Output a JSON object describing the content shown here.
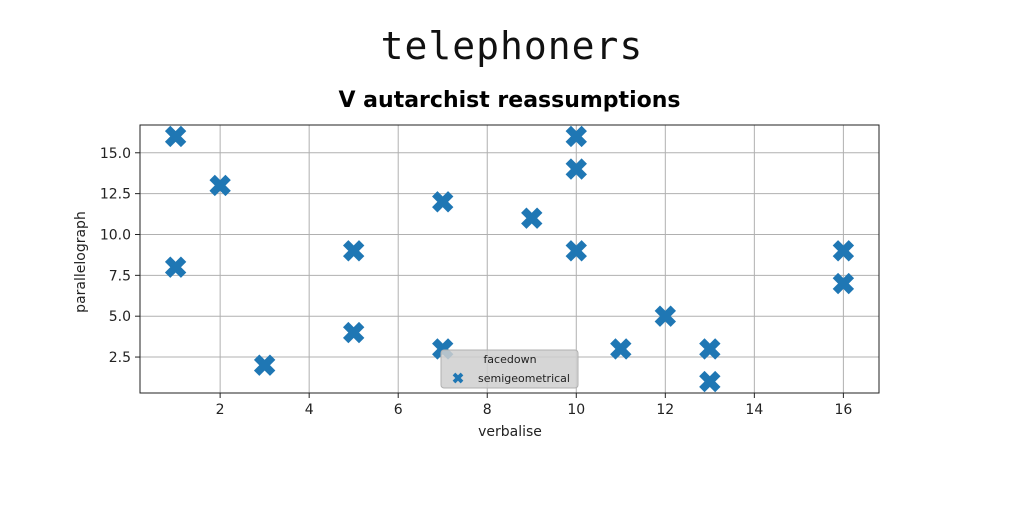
{
  "header": {
    "suptitle": "telephoners"
  },
  "chart_data": {
    "type": "scatter",
    "title": "V autarchist reassumptions",
    "xlabel": "verbalise",
    "ylabel": "parallelograph",
    "xlim": [
      0.2,
      16.8
    ],
    "ylim": [
      0.3,
      16.7
    ],
    "xticks": [
      2,
      4,
      6,
      8,
      10,
      12,
      14,
      16
    ],
    "yticks": [
      2.5,
      5.0,
      7.5,
      10.0,
      12.5,
      15.0
    ],
    "xtick_labels": [
      "2",
      "4",
      "6",
      "8",
      "10",
      "12",
      "14",
      "16"
    ],
    "ytick_labels": [
      "2.5",
      "5.0",
      "7.5",
      "10.0",
      "12.5",
      "15.0"
    ],
    "grid": true,
    "marker": "X",
    "color": "#1f77b4",
    "legend": {
      "title": "facedown",
      "placement": "lower-center",
      "entries": [
        "semigeometrical"
      ]
    },
    "series": [
      {
        "name": "semigeometrical",
        "points": [
          {
            "x": 1,
            "y": 16
          },
          {
            "x": 1,
            "y": 8
          },
          {
            "x": 2,
            "y": 13
          },
          {
            "x": 3,
            "y": 2
          },
          {
            "x": 5,
            "y": 9
          },
          {
            "x": 5,
            "y": 4
          },
          {
            "x": 7,
            "y": 12
          },
          {
            "x": 7,
            "y": 3
          },
          {
            "x": 9,
            "y": 11
          },
          {
            "x": 10,
            "y": 16
          },
          {
            "x": 10,
            "y": 14
          },
          {
            "x": 10,
            "y": 9
          },
          {
            "x": 11,
            "y": 3
          },
          {
            "x": 12,
            "y": 5
          },
          {
            "x": 13,
            "y": 3
          },
          {
            "x": 13,
            "y": 1
          },
          {
            "x": 16,
            "y": 9
          },
          {
            "x": 16,
            "y": 7
          }
        ]
      }
    ]
  }
}
